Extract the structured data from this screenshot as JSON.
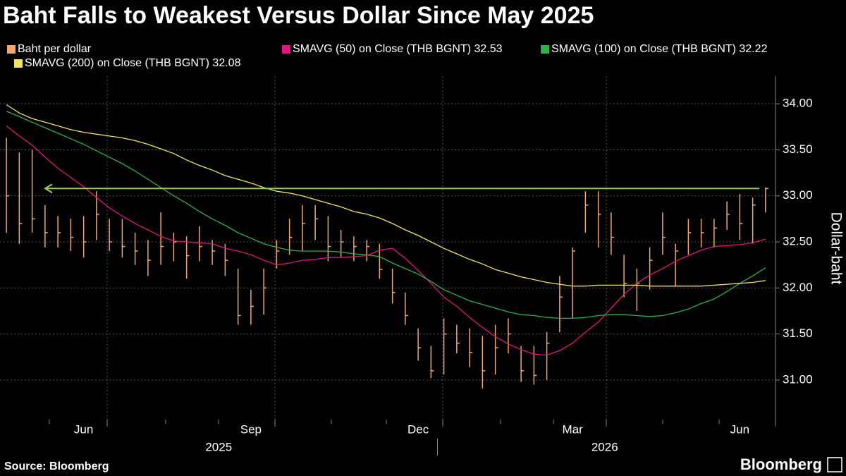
{
  "chart_data": {
    "type": "ohlc",
    "title": "Baht Falls to Weakest Versus Dollar Since May 2025",
    "y_axis_label": "Dollar-baht",
    "source": "Source: Bloomberg",
    "brand": "Bloomberg",
    "categories": [
      null,
      null,
      null,
      null,
      null,
      null,
      "Jun",
      null,
      null,
      null,
      null,
      null,
      null,
      null,
      null,
      null,
      null,
      null,
      null,
      "Sep",
      null,
      null,
      null,
      null,
      null,
      null,
      null,
      null,
      null,
      null,
      null,
      null,
      "Dec",
      null,
      null,
      null,
      null,
      null,
      null,
      null,
      null,
      null,
      null,
      null,
      "Mar",
      null,
      null,
      null,
      null,
      null,
      null,
      null,
      null,
      null,
      null,
      null,
      null,
      "Jun",
      null,
      null
    ],
    "x_groups": [
      {
        "label": "2025",
        "count": 34
      },
      {
        "label": "2026",
        "count": 26
      }
    ],
    "series": [
      {
        "name": "Baht per dollar",
        "color": "#f2a76e",
        "high": [
          33.63,
          33.47,
          33.5,
          32.9,
          32.78,
          32.75,
          32.78,
          33.05,
          32.75,
          32.75,
          32.6,
          32.52,
          32.82,
          32.6,
          32.56,
          32.67,
          32.52,
          32.48,
          32.21,
          31.98,
          32.21,
          32.52,
          32.75,
          32.9,
          32.9,
          32.78,
          32.63,
          32.56,
          32.52,
          32.48,
          32.21,
          31.95,
          31.56,
          31.37,
          31.67,
          31.6,
          31.56,
          31.48,
          31.6,
          31.67,
          31.37,
          31.37,
          31.52,
          32.13,
          32.44,
          33.05,
          33.05,
          32.82,
          32.36,
          32.21,
          32.44,
          32.82,
          32.48,
          32.75,
          32.75,
          32.75,
          32.94,
          33.02,
          32.98,
          33.09
        ],
        "low": [
          32.6,
          32.48,
          32.6,
          32.44,
          32.44,
          32.4,
          32.33,
          32.52,
          32.4,
          32.33,
          32.25,
          32.13,
          32.25,
          32.29,
          32.1,
          32.29,
          32.25,
          32.13,
          31.6,
          31.6,
          31.71,
          32.21,
          32.36,
          32.4,
          32.52,
          32.29,
          32.33,
          32.29,
          32.29,
          32.1,
          31.83,
          31.6,
          31.21,
          31.02,
          31.06,
          31.29,
          31.14,
          30.91,
          31.06,
          31.29,
          30.98,
          30.95,
          31.0,
          31.52,
          31.67,
          32.6,
          32.44,
          32.36,
          31.9,
          31.75,
          31.98,
          32.36,
          32.02,
          32.36,
          32.44,
          32.44,
          32.63,
          32.52,
          32.48,
          32.82
        ],
        "close": [
          33.0,
          32.7,
          32.75,
          32.6,
          32.6,
          32.55,
          32.5,
          32.8,
          32.5,
          32.45,
          32.4,
          32.3,
          32.45,
          32.5,
          32.35,
          32.45,
          32.4,
          32.3,
          31.7,
          31.8,
          32.0,
          32.4,
          32.55,
          32.7,
          32.75,
          32.45,
          32.5,
          32.45,
          32.45,
          32.2,
          31.95,
          31.7,
          31.35,
          31.1,
          31.5,
          31.4,
          31.3,
          31.1,
          31.35,
          31.5,
          31.1,
          31.05,
          31.4,
          31.9,
          32.4,
          32.9,
          32.8,
          32.55,
          32.05,
          32.05,
          32.3,
          32.55,
          32.4,
          32.6,
          32.6,
          32.65,
          32.8,
          32.7,
          32.9,
          33.08
        ]
      },
      {
        "name": "SMAVG (50)  on Close (THB BGNT) 32.53",
        "color": "#e3137f",
        "values": [
          33.76,
          33.65,
          33.55,
          33.42,
          33.3,
          33.2,
          33.1,
          32.98,
          32.87,
          32.78,
          32.7,
          32.63,
          32.56,
          32.51,
          32.5,
          32.49,
          32.48,
          32.43,
          32.4,
          32.36,
          32.3,
          32.25,
          32.27,
          32.3,
          32.31,
          32.33,
          32.33,
          32.34,
          32.35,
          32.41,
          32.43,
          32.32,
          32.19,
          32.05,
          31.9,
          31.8,
          31.68,
          31.57,
          31.47,
          31.39,
          31.33,
          31.28,
          31.27,
          31.32,
          31.4,
          31.52,
          31.63,
          31.78,
          31.93,
          32.05,
          32.14,
          32.21,
          32.29,
          32.35,
          32.41,
          32.45,
          32.46,
          32.47,
          32.49,
          32.53
        ]
      },
      {
        "name": "SMAVG (100)  on Close (THB BGNT) 32.22",
        "color": "#2fb04a",
        "values": [
          33.92,
          33.86,
          33.8,
          33.74,
          33.68,
          33.62,
          33.56,
          33.49,
          33.42,
          33.35,
          33.27,
          33.18,
          33.09,
          33.0,
          32.92,
          32.83,
          32.75,
          32.68,
          32.6,
          32.54,
          32.48,
          32.44,
          32.41,
          32.4,
          32.4,
          32.4,
          32.39,
          32.37,
          32.36,
          32.34,
          32.27,
          32.21,
          32.15,
          32.07,
          31.98,
          31.92,
          31.86,
          31.82,
          31.78,
          31.74,
          31.71,
          31.7,
          31.68,
          31.67,
          31.67,
          31.68,
          31.7,
          31.71,
          31.71,
          31.7,
          31.69,
          31.7,
          31.73,
          31.77,
          31.83,
          31.88,
          31.96,
          32.05,
          32.13,
          32.22
        ]
      },
      {
        "name": "SMAVG (200)  on Close (THB BGNT) 32.08",
        "color": "#f2e463",
        "values": [
          33.99,
          33.9,
          33.84,
          33.8,
          33.76,
          33.72,
          33.69,
          33.67,
          33.65,
          33.63,
          33.6,
          33.56,
          33.51,
          33.46,
          33.39,
          33.33,
          33.28,
          33.22,
          33.18,
          33.14,
          33.09,
          33.05,
          33.03,
          33.0,
          32.96,
          32.92,
          32.88,
          32.83,
          32.8,
          32.76,
          32.7,
          32.63,
          32.57,
          32.5,
          32.43,
          32.37,
          32.31,
          32.26,
          32.2,
          32.16,
          32.12,
          32.09,
          32.06,
          32.04,
          32.02,
          32.02,
          32.03,
          32.03,
          32.03,
          32.03,
          32.02,
          32.02,
          32.02,
          32.02,
          32.02,
          32.03,
          32.04,
          32.05,
          32.06,
          32.08
        ]
      }
    ],
    "reference_line": {
      "value": 33.08,
      "color": "#9ad14b"
    },
    "ylim": [
      30.57,
      34.3
    ],
    "yticks": [
      {
        "value": 31,
        "label": "31.00"
      },
      {
        "value": 31.5,
        "label": "31.50"
      },
      {
        "value": 32,
        "label": "32.00"
      },
      {
        "value": 32.5,
        "label": "32.50"
      },
      {
        "value": 33,
        "label": "33.00"
      },
      {
        "value": 33.5,
        "label": "33.50"
      },
      {
        "value": 34,
        "label": "34.00"
      }
    ],
    "grid": true
  }
}
